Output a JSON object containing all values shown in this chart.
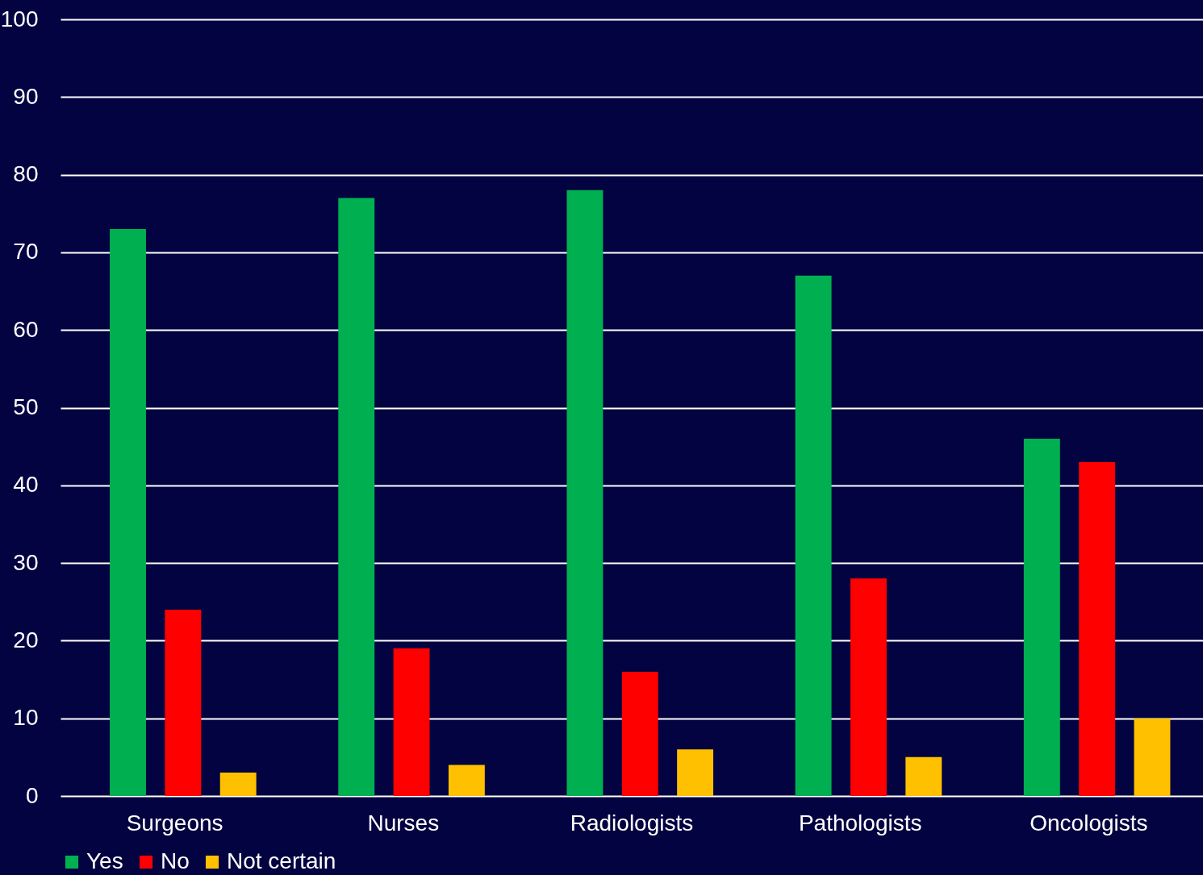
{
  "chart_data": {
    "type": "bar",
    "categories": [
      "Surgeons",
      "Nurses",
      "Radiologists",
      "Pathologists",
      "Oncologists"
    ],
    "series": [
      {
        "name": "Yes",
        "color": "#00b050",
        "values": [
          73,
          77,
          78,
          67,
          46
        ]
      },
      {
        "name": "No",
        "color": "#ff0000",
        "values": [
          24,
          19,
          16,
          28,
          43
        ]
      },
      {
        "name": "Not certain",
        "color": "#ffc000",
        "values": [
          3,
          4,
          6,
          5,
          10
        ]
      }
    ],
    "ylim": [
      0,
      100
    ],
    "yticks": [
      0,
      10,
      20,
      30,
      40,
      50,
      60,
      70,
      80,
      90,
      100
    ],
    "grid": "y",
    "legend": "bottom"
  }
}
